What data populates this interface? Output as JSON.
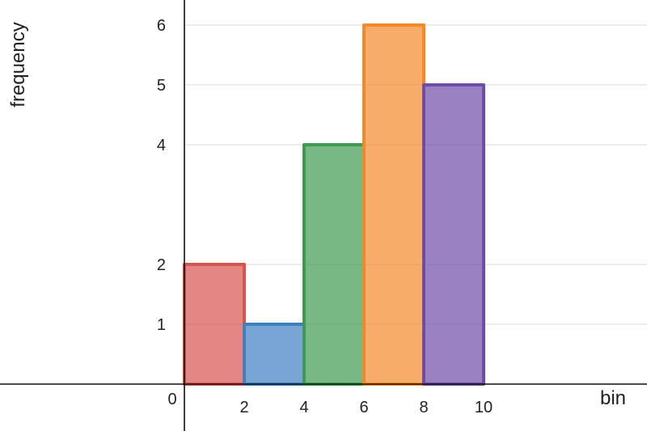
{
  "chart_data": {
    "type": "bar",
    "xlabel": "bin",
    "ylabel": "frequency",
    "bins": [
      {
        "x0": 0,
        "x1": 2,
        "value": 2,
        "color": "#d9534f"
      },
      {
        "x0": 2,
        "x1": 4,
        "value": 1,
        "color": "#3f7fc0"
      },
      {
        "x0": 4,
        "x1": 6,
        "value": 4,
        "color": "#3d9a50"
      },
      {
        "x0": 6,
        "x1": 8,
        "value": 6,
        "color": "#f5892a"
      },
      {
        "x0": 8,
        "x1": 10,
        "value": 5,
        "color": "#6f4ca8"
      }
    ],
    "x_ticks": [
      "0",
      "2",
      "4",
      "6",
      "8",
      "10"
    ],
    "y_ticks": [
      "1",
      "2",
      "4",
      "5",
      "6"
    ],
    "grid": true
  }
}
